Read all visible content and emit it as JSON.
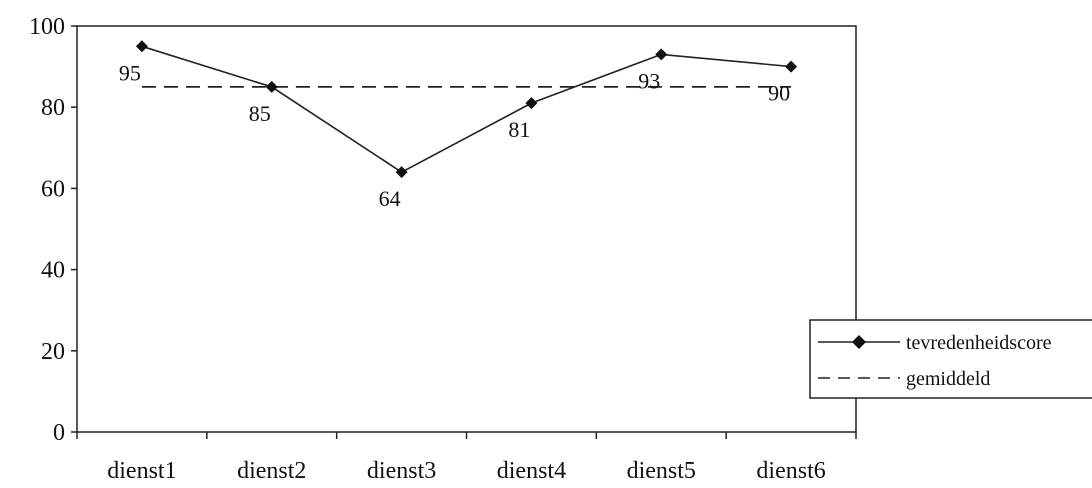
{
  "chart_data": {
    "type": "line",
    "title": "",
    "xlabel": "",
    "ylabel": "",
    "categories": [
      "dienst1",
      "dienst2",
      "dienst3",
      "dienst4",
      "dienst5",
      "dienst6"
    ],
    "ylim": [
      0,
      100
    ],
    "yticks": [
      0,
      20,
      40,
      60,
      80,
      100
    ],
    "grid": false,
    "legend_position": "right",
    "series": [
      {
        "name": "tevredenheidscore",
        "values": [
          95,
          85,
          64,
          81,
          93,
          90
        ],
        "style": "solid",
        "marker": "diamond",
        "data_labels": [
          "95",
          "85",
          "64",
          "81",
          "93",
          "90"
        ],
        "color": "#222222"
      },
      {
        "name": "gemiddeld",
        "values": [
          85,
          85,
          85,
          85,
          85,
          85
        ],
        "style": "dashed",
        "marker": "none",
        "color": "#222222"
      }
    ]
  }
}
